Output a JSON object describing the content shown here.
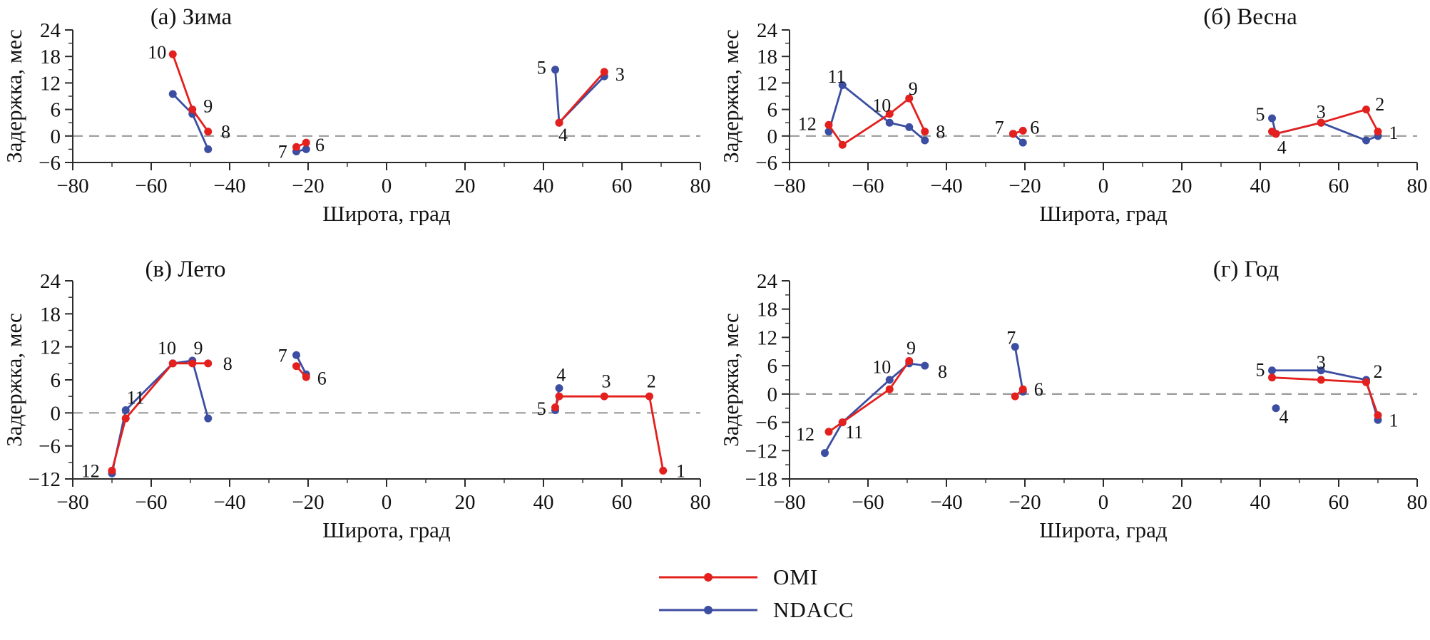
{
  "colors": {
    "omi": "#e3201e",
    "ndacc": "#3c4ea1",
    "zero_line": "#9a9a9a",
    "axis": "#2b2b2b",
    "text": "#111111"
  },
  "legend": {
    "items": [
      {
        "label": "OMI",
        "color": "#e3201e"
      },
      {
        "label": "NDACC",
        "color": "#3c4ea1"
      }
    ]
  },
  "chart_data": [
    {
      "id": "a",
      "type": "line",
      "title": "(а) Зима",
      "xlabel": "Широта, град",
      "ylabel": "Задержка, мес",
      "xlim": [
        -80,
        80
      ],
      "ylim": [
        -6,
        24
      ],
      "xticks": [
        -80,
        -60,
        -40,
        -20,
        0,
        20,
        40,
        60,
        80
      ],
      "yticks": [
        -6,
        0,
        6,
        12,
        18,
        24
      ],
      "zero_line": true,
      "series": [
        {
          "name": "OMI",
          "color": "#e3201e",
          "groups": [
            [
              [
                -54.5,
                18.5
              ],
              [
                -49.5,
                6
              ],
              [
                -45.5,
                1
              ]
            ],
            [
              [
                -23,
                -2.5
              ],
              [
                -20.5,
                -1.5
              ]
            ],
            [
              [
                44,
                3
              ],
              [
                55.5,
                14.5
              ]
            ]
          ]
        },
        {
          "name": "NDACC",
          "color": "#3c4ea1",
          "groups": [
            [
              [
                -54.5,
                9.5
              ],
              [
                -49.5,
                5
              ],
              [
                -45.5,
                -3
              ]
            ],
            [
              [
                -23,
                -3.5
              ],
              [
                -20.5,
                -3
              ]
            ],
            [
              [
                43,
                15
              ],
              [
                44,
                3
              ],
              [
                55.5,
                13.5
              ]
            ]
          ]
        }
      ],
      "point_labels": [
        {
          "text": "10",
          "x": -58.5,
          "y": 19
        },
        {
          "text": "9",
          "x": -45.5,
          "y": 6.8
        },
        {
          "text": "8",
          "x": -41,
          "y": 1
        },
        {
          "text": "7",
          "x": -26.5,
          "y": -3.5
        },
        {
          "text": "6",
          "x": -17,
          "y": -2
        },
        {
          "text": "5",
          "x": 39.5,
          "y": 15.5
        },
        {
          "text": "4",
          "x": 45,
          "y": 0.3
        },
        {
          "text": "3",
          "x": 59.5,
          "y": 14
        }
      ]
    },
    {
      "id": "b",
      "type": "line",
      "title": "(б) Весна",
      "xlabel": "Широта, град",
      "ylabel": "Задержка, мес",
      "xlim": [
        -80,
        80
      ],
      "ylim": [
        -6,
        24
      ],
      "xticks": [
        -80,
        -60,
        -40,
        -20,
        0,
        20,
        40,
        60,
        80
      ],
      "yticks": [
        -6,
        0,
        6,
        12,
        18,
        24
      ],
      "zero_line": true,
      "series": [
        {
          "name": "OMI",
          "color": "#e3201e",
          "groups": [
            [
              [
                -70,
                2.5
              ],
              [
                -66.5,
                -2
              ],
              [
                -54.5,
                5
              ],
              [
                -49.5,
                8.5
              ],
              [
                -45.5,
                1
              ]
            ],
            [
              [
                -23,
                0.5
              ],
              [
                -20.5,
                1.2
              ]
            ],
            [
              [
                43,
                1
              ],
              [
                44,
                0.5
              ],
              [
                55.5,
                3
              ],
              [
                67,
                6
              ],
              [
                70,
                1
              ]
            ]
          ]
        },
        {
          "name": "NDACC",
          "color": "#3c4ea1",
          "groups": [
            [
              [
                -70,
                1
              ],
              [
                -66.5,
                11.5
              ],
              [
                -54.5,
                3
              ],
              [
                -49.5,
                2
              ],
              [
                -45.5,
                -1
              ]
            ],
            [
              [
                -23,
                0.5
              ],
              [
                -20.5,
                -1.5
              ]
            ],
            [
              [
                43,
                4
              ],
              [
                44,
                0.5
              ],
              [
                55.5,
                3
              ],
              [
                67,
                -1
              ],
              [
                70,
                0
              ]
            ]
          ]
        }
      ],
      "point_labels": [
        {
          "text": "12",
          "x": -75.5,
          "y": 2.8
        },
        {
          "text": "11",
          "x": -68,
          "y": 13.5
        },
        {
          "text": "10",
          "x": -56.5,
          "y": 7
        },
        {
          "text": "9",
          "x": -48.5,
          "y": 10.8
        },
        {
          "text": "8",
          "x": -41.5,
          "y": 1
        },
        {
          "text": "7",
          "x": -26.5,
          "y": 2
        },
        {
          "text": "6",
          "x": -17.5,
          "y": 2
        },
        {
          "text": "5",
          "x": 40,
          "y": 5
        },
        {
          "text": "4",
          "x": 45.5,
          "y": -2.5
        },
        {
          "text": "3",
          "x": 55.5,
          "y": 5.5
        },
        {
          "text": "2",
          "x": 70.5,
          "y": 7.2
        },
        {
          "text": "1",
          "x": 74,
          "y": 0.8
        }
      ]
    },
    {
      "id": "v",
      "type": "line",
      "title": "(в) Лето",
      "xlabel": "Широта, град",
      "ylabel": "Задержка, мес",
      "xlim": [
        -80,
        80
      ],
      "ylim": [
        -12,
        24
      ],
      "xticks": [
        -80,
        -60,
        -40,
        -20,
        0,
        20,
        40,
        60,
        80
      ],
      "yticks": [
        -12,
        -6,
        0,
        6,
        12,
        18,
        24
      ],
      "zero_line": true,
      "series": [
        {
          "name": "OMI",
          "color": "#e3201e",
          "groups": [
            [
              [
                -70,
                -10.5
              ],
              [
                -66.5,
                -1
              ],
              [
                -54.5,
                9
              ],
              [
                -49.5,
                9
              ],
              [
                -45.5,
                9
              ]
            ],
            [
              [
                -23,
                8.5
              ],
              [
                -20.5,
                6.5
              ]
            ],
            [
              [
                43,
                1
              ],
              [
                44,
                3
              ],
              [
                55.5,
                3
              ],
              [
                67,
                3
              ],
              [
                70.5,
                -10.5
              ]
            ]
          ]
        },
        {
          "name": "NDACC",
          "color": "#3c4ea1",
          "groups": [
            [
              [
                -70,
                -11
              ],
              [
                -66.5,
                0.5
              ],
              [
                -54.5,
                9
              ],
              [
                -49.5,
                9.5
              ],
              [
                -45.5,
                -1
              ]
            ],
            [
              [
                -23,
                10.5
              ],
              [
                -20.5,
                7
              ]
            ],
            [
              [
                43,
                0.5
              ],
              [
                44,
                4.5
              ]
            ]
          ]
        }
      ],
      "point_labels": [
        {
          "text": "12",
          "x": -75.5,
          "y": -10.5
        },
        {
          "text": "11",
          "x": -64,
          "y": 2.8
        },
        {
          "text": "10",
          "x": -56,
          "y": 11.8
        },
        {
          "text": "9",
          "x": -48,
          "y": 11.8
        },
        {
          "text": "8",
          "x": -40.5,
          "y": 9
        },
        {
          "text": "7",
          "x": -26.5,
          "y": 10.5
        },
        {
          "text": "6",
          "x": -16.5,
          "y": 6.3
        },
        {
          "text": "5",
          "x": 39.5,
          "y": 0.8
        },
        {
          "text": "4",
          "x": 44.5,
          "y": 7
        },
        {
          "text": "3",
          "x": 56,
          "y": 5.8
        },
        {
          "text": "2",
          "x": 67.5,
          "y": 5.8
        },
        {
          "text": "1",
          "x": 75,
          "y": -10.5
        }
      ]
    },
    {
      "id": "g",
      "type": "line",
      "title": "(г) Год",
      "xlabel": "Широта, град",
      "ylabel": "Задержка, мес",
      "xlim": [
        -80,
        80
      ],
      "ylim": [
        -18,
        24
      ],
      "xticks": [
        -80,
        -60,
        -40,
        -20,
        0,
        20,
        40,
        60,
        80
      ],
      "yticks": [
        -18,
        -12,
        -6,
        0,
        6,
        12,
        18,
        24
      ],
      "zero_line": true,
      "series": [
        {
          "name": "OMI",
          "color": "#e3201e",
          "groups": [
            [
              [
                -70,
                -8
              ],
              [
                -66.5,
                -6
              ],
              [
                -54.5,
                1
              ],
              [
                -49.5,
                7
              ]
            ],
            [
              [
                -22.5,
                -0.5
              ],
              [
                -20.5,
                1
              ]
            ],
            [
              [
                43,
                3.5
              ],
              [
                55.5,
                3
              ],
              [
                67,
                2.5
              ],
              [
                70,
                -4.5
              ]
            ]
          ]
        },
        {
          "name": "NDACC",
          "color": "#3c4ea1",
          "groups": [
            [
              [
                -71,
                -12.5
              ],
              [
                -66.5,
                -6
              ],
              [
                -54.5,
                3
              ],
              [
                -49.5,
                6.5
              ],
              [
                -45.5,
                6
              ]
            ],
            [
              [
                -22.5,
                10
              ],
              [
                -20.5,
                0.5
              ]
            ],
            [
              [
                43,
                5
              ],
              [
                55.5,
                5
              ],
              [
                67,
                3
              ],
              [
                70,
                -5.5
              ]
            ],
            [
              [
                44,
                -3
              ]
            ]
          ]
        }
      ],
      "point_labels": [
        {
          "text": "12",
          "x": -76,
          "y": -8.5
        },
        {
          "text": "11",
          "x": -63.5,
          "y": -8
        },
        {
          "text": "10",
          "x": -56.5,
          "y": 5.8
        },
        {
          "text": "9",
          "x": -49,
          "y": 9.8
        },
        {
          "text": "8",
          "x": -41,
          "y": 4.8
        },
        {
          "text": "7",
          "x": -23.5,
          "y": 12
        },
        {
          "text": "6",
          "x": -16.5,
          "y": 1
        },
        {
          "text": "5",
          "x": 40,
          "y": 5.2
        },
        {
          "text": "4",
          "x": 46,
          "y": -4.8
        },
        {
          "text": "3",
          "x": 55.5,
          "y": 6.8
        },
        {
          "text": "2",
          "x": 70,
          "y": 4.8
        },
        {
          "text": "1",
          "x": 74,
          "y": -5.5
        }
      ]
    }
  ]
}
